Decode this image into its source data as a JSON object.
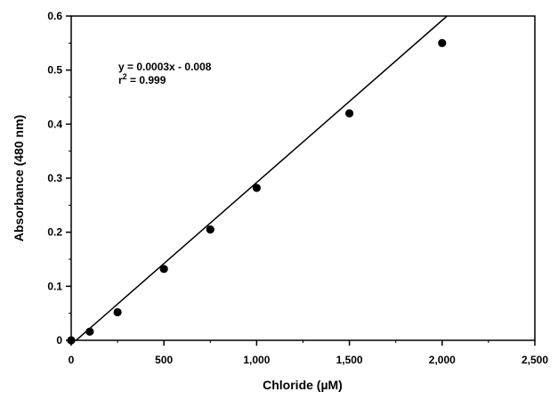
{
  "chart_data": {
    "type": "scatter",
    "title": "",
    "xlabel": "Chloride (µM)",
    "ylabel": "Absorbance (480 nm)",
    "xlim": [
      0,
      2500
    ],
    "ylim": [
      0,
      0.6
    ],
    "x_ticks": [
      0,
      500,
      1000,
      1500,
      2000,
      2500
    ],
    "x_tick_labels": [
      "0",
      "500",
      "1,000",
      "1,500",
      "2,000",
      "2,500"
    ],
    "y_ticks": [
      0,
      0.1,
      0.2,
      0.3,
      0.4,
      0.5,
      0.6
    ],
    "y_tick_labels": [
      "0",
      "0.1",
      "0.2",
      "0.3",
      "0.4",
      "0.5",
      "0.6"
    ],
    "grid": false,
    "series": [
      {
        "x": [
          0,
          100,
          250,
          500,
          750,
          1000,
          1500,
          2000
        ],
        "y": [
          0.0,
          0.016,
          0.052,
          0.132,
          0.205,
          0.282,
          0.42,
          0.55
        ]
      }
    ],
    "fit_line": {
      "slope": 0.0003,
      "intercept": -0.008,
      "r2": 0.999
    },
    "annotation": {
      "equation": "y = 0.0003x - 0.008",
      "r_prefix": "r",
      "r_superscript": "2",
      "r_value": " = 0.999"
    }
  }
}
